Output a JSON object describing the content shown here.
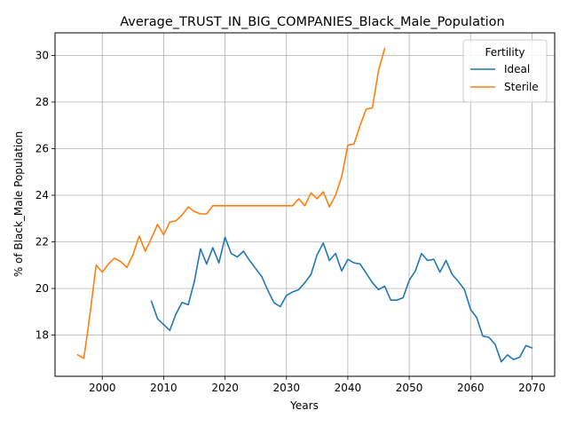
{
  "chart_data": {
    "type": "line",
    "title": "Average_TRUST_IN_BIG_COMPANIES_Black_Male_Population",
    "xlabel": "Years",
    "ylabel": "% of Black_Male Population",
    "xlim": [
      1992.3,
      2073.7
    ],
    "ylim": [
      16.23,
      30.97
    ],
    "xticks": [
      2000,
      2010,
      2020,
      2030,
      2040,
      2050,
      2060,
      2070
    ],
    "yticks": [
      18,
      20,
      22,
      24,
      26,
      28,
      30
    ],
    "grid": true,
    "legend": {
      "title": "Fertility",
      "placement": "top-right"
    },
    "series": [
      {
        "name": "Ideal",
        "color": "#1f77b4",
        "x": [
          2008,
          2009,
          2010,
          2011,
          2012,
          2013,
          2014,
          2015,
          2016,
          2017,
          2018,
          2019,
          2020,
          2021,
          2022,
          2023,
          2024,
          2025,
          2026,
          2027,
          2028,
          2029,
          2030,
          2031,
          2032,
          2033,
          2034,
          2035,
          2036,
          2037,
          2038,
          2039,
          2040,
          2041,
          2042,
          2043,
          2044,
          2045,
          2046,
          2047,
          2048,
          2049,
          2050,
          2051,
          2052,
          2053,
          2054,
          2055,
          2056,
          2057,
          2058,
          2059,
          2060,
          2061,
          2062,
          2063,
          2064,
          2065,
          2066,
          2067,
          2068,
          2069,
          2070
        ],
        "y": [
          19.45,
          18.7,
          18.45,
          18.2,
          18.9,
          19.4,
          19.3,
          20.3,
          21.7,
          21.05,
          21.75,
          21.1,
          22.2,
          21.5,
          21.35,
          21.6,
          21.2,
          20.85,
          20.5,
          19.9,
          19.38,
          19.22,
          19.7,
          19.85,
          19.95,
          20.25,
          20.6,
          21.45,
          21.95,
          21.2,
          21.5,
          20.75,
          21.25,
          21.1,
          21.05,
          20.65,
          20.25,
          19.95,
          20.1,
          19.5,
          19.5,
          19.6,
          20.35,
          20.75,
          21.5,
          21.2,
          21.25,
          20.7,
          21.2,
          20.6,
          20.3,
          19.95,
          19.1,
          18.75,
          17.95,
          17.9,
          17.6,
          16.85,
          17.15,
          16.95,
          17.05,
          17.55,
          17.45
        ]
      },
      {
        "name": "Sterile",
        "color": "#ff7f0e",
        "x": [
          1996,
          1997,
          1998,
          1999,
          2000,
          2001,
          2002,
          2003,
          2004,
          2005,
          2006,
          2007,
          2008,
          2009,
          2010,
          2011,
          2012,
          2013,
          2014,
          2015,
          2016,
          2017,
          2018,
          2019,
          2020,
          2021,
          2022,
          2023,
          2024,
          2025,
          2026,
          2027,
          2028,
          2029,
          2030,
          2031,
          2032,
          2033,
          2034,
          2035,
          2036,
          2037,
          2038,
          2039,
          2040,
          2041,
          2042,
          2043,
          2044,
          2045,
          2046
        ],
        "y": [
          17.15,
          17.0,
          18.9,
          21.0,
          20.7,
          21.05,
          21.3,
          21.15,
          20.9,
          21.45,
          22.25,
          21.6,
          22.15,
          22.75,
          22.3,
          22.85,
          22.9,
          23.15,
          23.5,
          23.3,
          23.2,
          23.2,
          23.55,
          23.55,
          23.55,
          23.55,
          23.55,
          23.55,
          23.55,
          23.55,
          23.55,
          23.55,
          23.55,
          23.55,
          23.55,
          23.55,
          23.85,
          23.55,
          24.1,
          23.85,
          24.15,
          23.5,
          24.0,
          24.8,
          26.15,
          26.2,
          27.0,
          27.7,
          27.75,
          29.35,
          30.3
        ]
      }
    ]
  }
}
